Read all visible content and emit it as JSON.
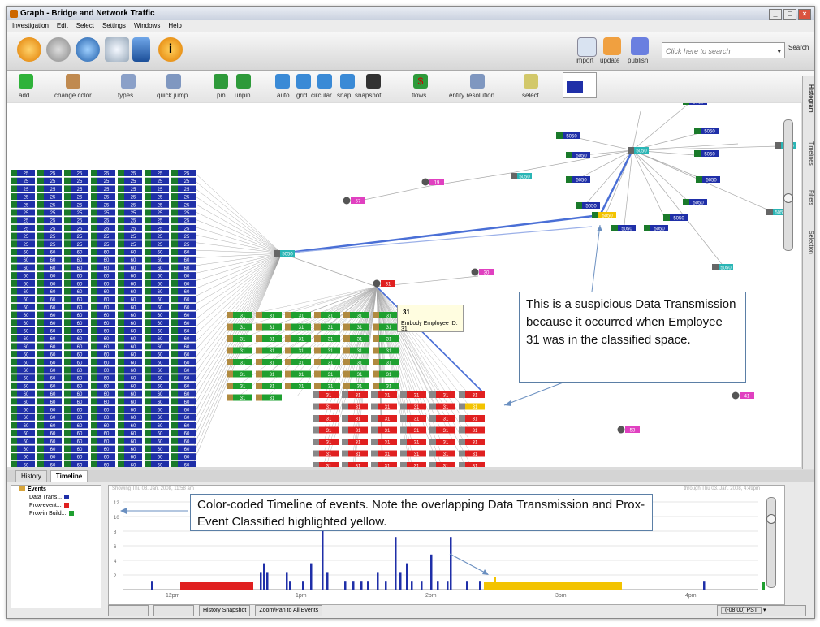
{
  "window": {
    "title": "Graph - Bridge and Network Traffic"
  },
  "menu": [
    "Investigation",
    "Edit",
    "Select",
    "Settings",
    "Windows",
    "Help"
  ],
  "toolbar_main": {
    "right": [
      {
        "label": "import"
      },
      {
        "label": "update"
      },
      {
        "label": "publish"
      }
    ],
    "search_placeholder": "Click here to search",
    "search_button": "Search"
  },
  "toolbar_graph": [
    "add",
    "change color",
    "types",
    "quick jump",
    "pin",
    "unpin",
    "auto",
    "grid",
    "circular",
    "snap",
    "snapshot",
    "flows",
    "entity resolution",
    "select"
  ],
  "side_tabs": [
    "Histogram",
    "Timelines",
    "Filters",
    "Selection"
  ],
  "graph": {
    "nodes": {
      "blue_a": "25",
      "blue_b": "60",
      "green": "31",
      "red": "31",
      "hub": "5050",
      "small": "5050"
    },
    "tooltip": {
      "id": "31",
      "text": "Embody Employee ID: 31"
    },
    "people": [
      "57",
      "19",
      "31",
      "30",
      "41",
      "53"
    ]
  },
  "callouts": {
    "graph": "This is a suspicious Data Transmission because it occurred when Employee 31 was in the classified space.",
    "timeline": "Color-coded Timeline of events.  Note the overlapping Data Transmission and Prox-Event Classified highlighted yellow."
  },
  "bottom": {
    "tabs": [
      "History",
      "Timeline"
    ],
    "tree": {
      "root": "Events",
      "items": [
        {
          "label": "Data Trans...",
          "color": "#1f2fa8"
        },
        {
          "label": "Prox-event...",
          "color": "#e02020"
        },
        {
          "label": "Prox-in Build...",
          "color": "#1fa030"
        }
      ]
    },
    "range_start": "Showing Thu 03. Jan. 2008, 11:58 am",
    "range_end": "through Thu 03. Jan. 2008, 4:49pm",
    "y_ticks": [
      "12",
      "10",
      "8",
      "6",
      "4",
      "2"
    ],
    "x_ticks": [
      "12pm",
      "1pm",
      "2pm",
      "3pm",
      "4pm"
    ],
    "status": {
      "history_snapshot": "History Snapshot",
      "zoom": "Zoom/Pan to All Events",
      "timezone": "(-08:00) PST"
    }
  },
  "colors": {
    "data_trans": "#1f2fa8",
    "prox_event": "#e02020",
    "prox_build": "#1fa030",
    "highlight": "#f3c300"
  }
}
